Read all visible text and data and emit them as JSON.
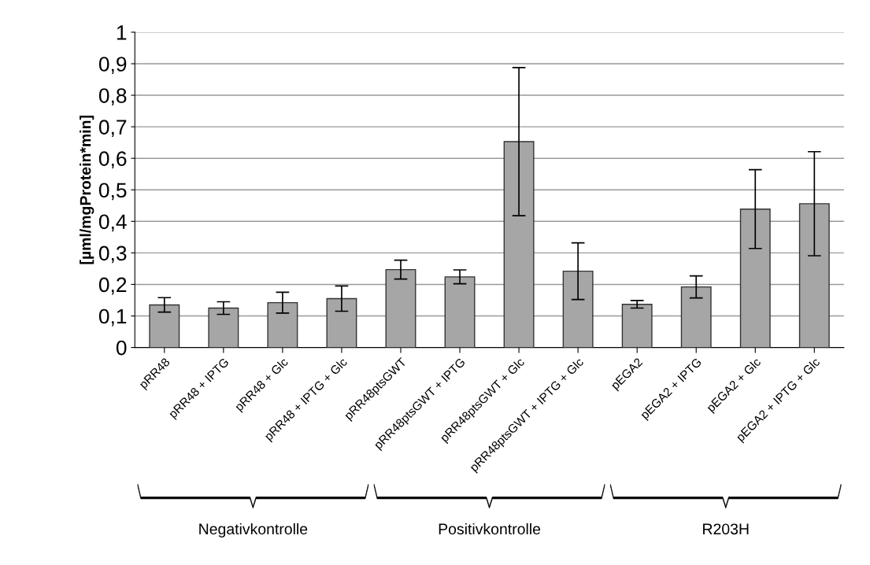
{
  "chart_data": {
    "type": "bar",
    "ylabel": "[µml/mgProtein*min]",
    "categories": [
      "pRR48",
      "pRR48 + IPTG",
      "pRR48 + Glc",
      "pRR48 + IPTG + Glc",
      "pRR48ptsGWT",
      "pRR48ptsGWT + IPTG",
      "pRR48ptsGWT + Glc",
      "pRR48ptsGWT + IPTG + Glc",
      "pEGA2",
      "pEGA2 + IPTG",
      "pEGA2 + Glc",
      "pEGA2 + IPTG + Glc"
    ],
    "values": [
      0.135,
      0.125,
      0.142,
      0.155,
      0.247,
      0.224,
      0.653,
      0.242,
      0.137,
      0.192,
      0.439,
      0.456
    ],
    "errors": [
      0.023,
      0.02,
      0.033,
      0.04,
      0.03,
      0.022,
      0.235,
      0.09,
      0.012,
      0.035,
      0.125,
      0.165
    ],
    "color": "#a6a6a6",
    "ylim": [
      0,
      1
    ],
    "yticks": [
      0,
      {
        "value": 0.1,
        "label": "0,1"
      },
      {
        "value": 0.2,
        "label": "0,2"
      },
      {
        "value": 0.3,
        "label": "0,3"
      },
      {
        "value": 0.4,
        "label": "0,4"
      },
      {
        "value": 0.5,
        "label": "0,5"
      },
      {
        "value": 0.6,
        "label": "0,6"
      },
      {
        "value": 0.7,
        "label": "0,7"
      },
      {
        "value": 0.8,
        "label": "0,8"
      },
      {
        "value": 0.9,
        "label": "0,9"
      },
      1
    ],
    "grid": "y",
    "legend": false,
    "annotations": [
      "Negativkontrolle",
      "Positivkontrolle",
      "R203H"
    ]
  }
}
